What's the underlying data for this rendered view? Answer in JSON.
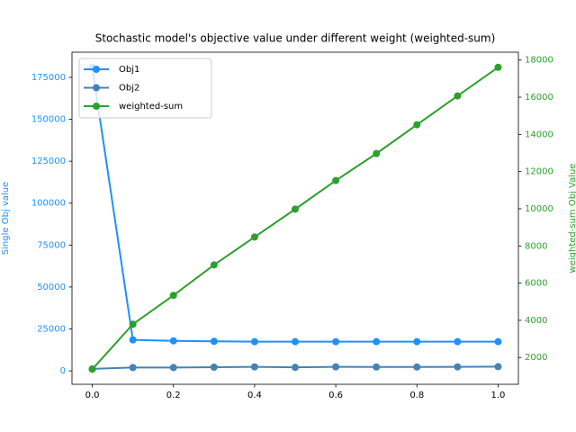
{
  "chart_data": {
    "type": "line",
    "title": "Stochastic model's objective value under different weight (weighted-sum)",
    "y_label": "Single Obj value",
    "y2_label": "weighted-sum Obj Value",
    "y_label_color": "#1e90ff",
    "y2_label_color": "#2ca02c",
    "x": [
      0,
      0.1,
      0.2,
      0.3,
      0.4,
      0.5,
      0.6,
      0.7,
      0.8,
      0.9,
      1
    ],
    "series": [
      {
        "name": "Obj1",
        "color": "#1e90ff",
        "values": [
          181000,
          18500,
          17900,
          17600,
          17400,
          17400,
          17400,
          17400,
          17400,
          17400,
          17400
        ]
      },
      {
        "name": "Obj2",
        "color": "#4682b4",
        "values": [
          1200,
          2000,
          2000,
          2200,
          2400,
          2100,
          2400,
          2300,
          2300,
          2400,
          2500
        ]
      },
      {
        "name": "weighted-sum",
        "color": "#2ca02c",
        "axis": "y2",
        "values": [
          1370,
          3790,
          5340,
          6980,
          8480,
          9980,
          11520,
          12970,
          14520,
          16070,
          17610
        ]
      }
    ],
    "xlim": [
      -0.05,
      1.05
    ],
    "xticks": [
      {
        "value": 0,
        "label": "0.0"
      },
      0.2,
      0.4,
      0.6,
      0.8,
      {
        "value": 1,
        "label": "1.0"
      }
    ],
    "ylim": [
      -8000,
      190000
    ],
    "yticks": [
      0,
      25000,
      50000,
      75000,
      100000,
      125000,
      150000,
      175000
    ],
    "y2lim": [
      558,
      18422
    ],
    "y2ticks": [
      2000,
      4000,
      6000,
      8000,
      10000,
      12000,
      14000,
      16000,
      18000
    ],
    "legend": "upper left",
    "grid": false
  }
}
